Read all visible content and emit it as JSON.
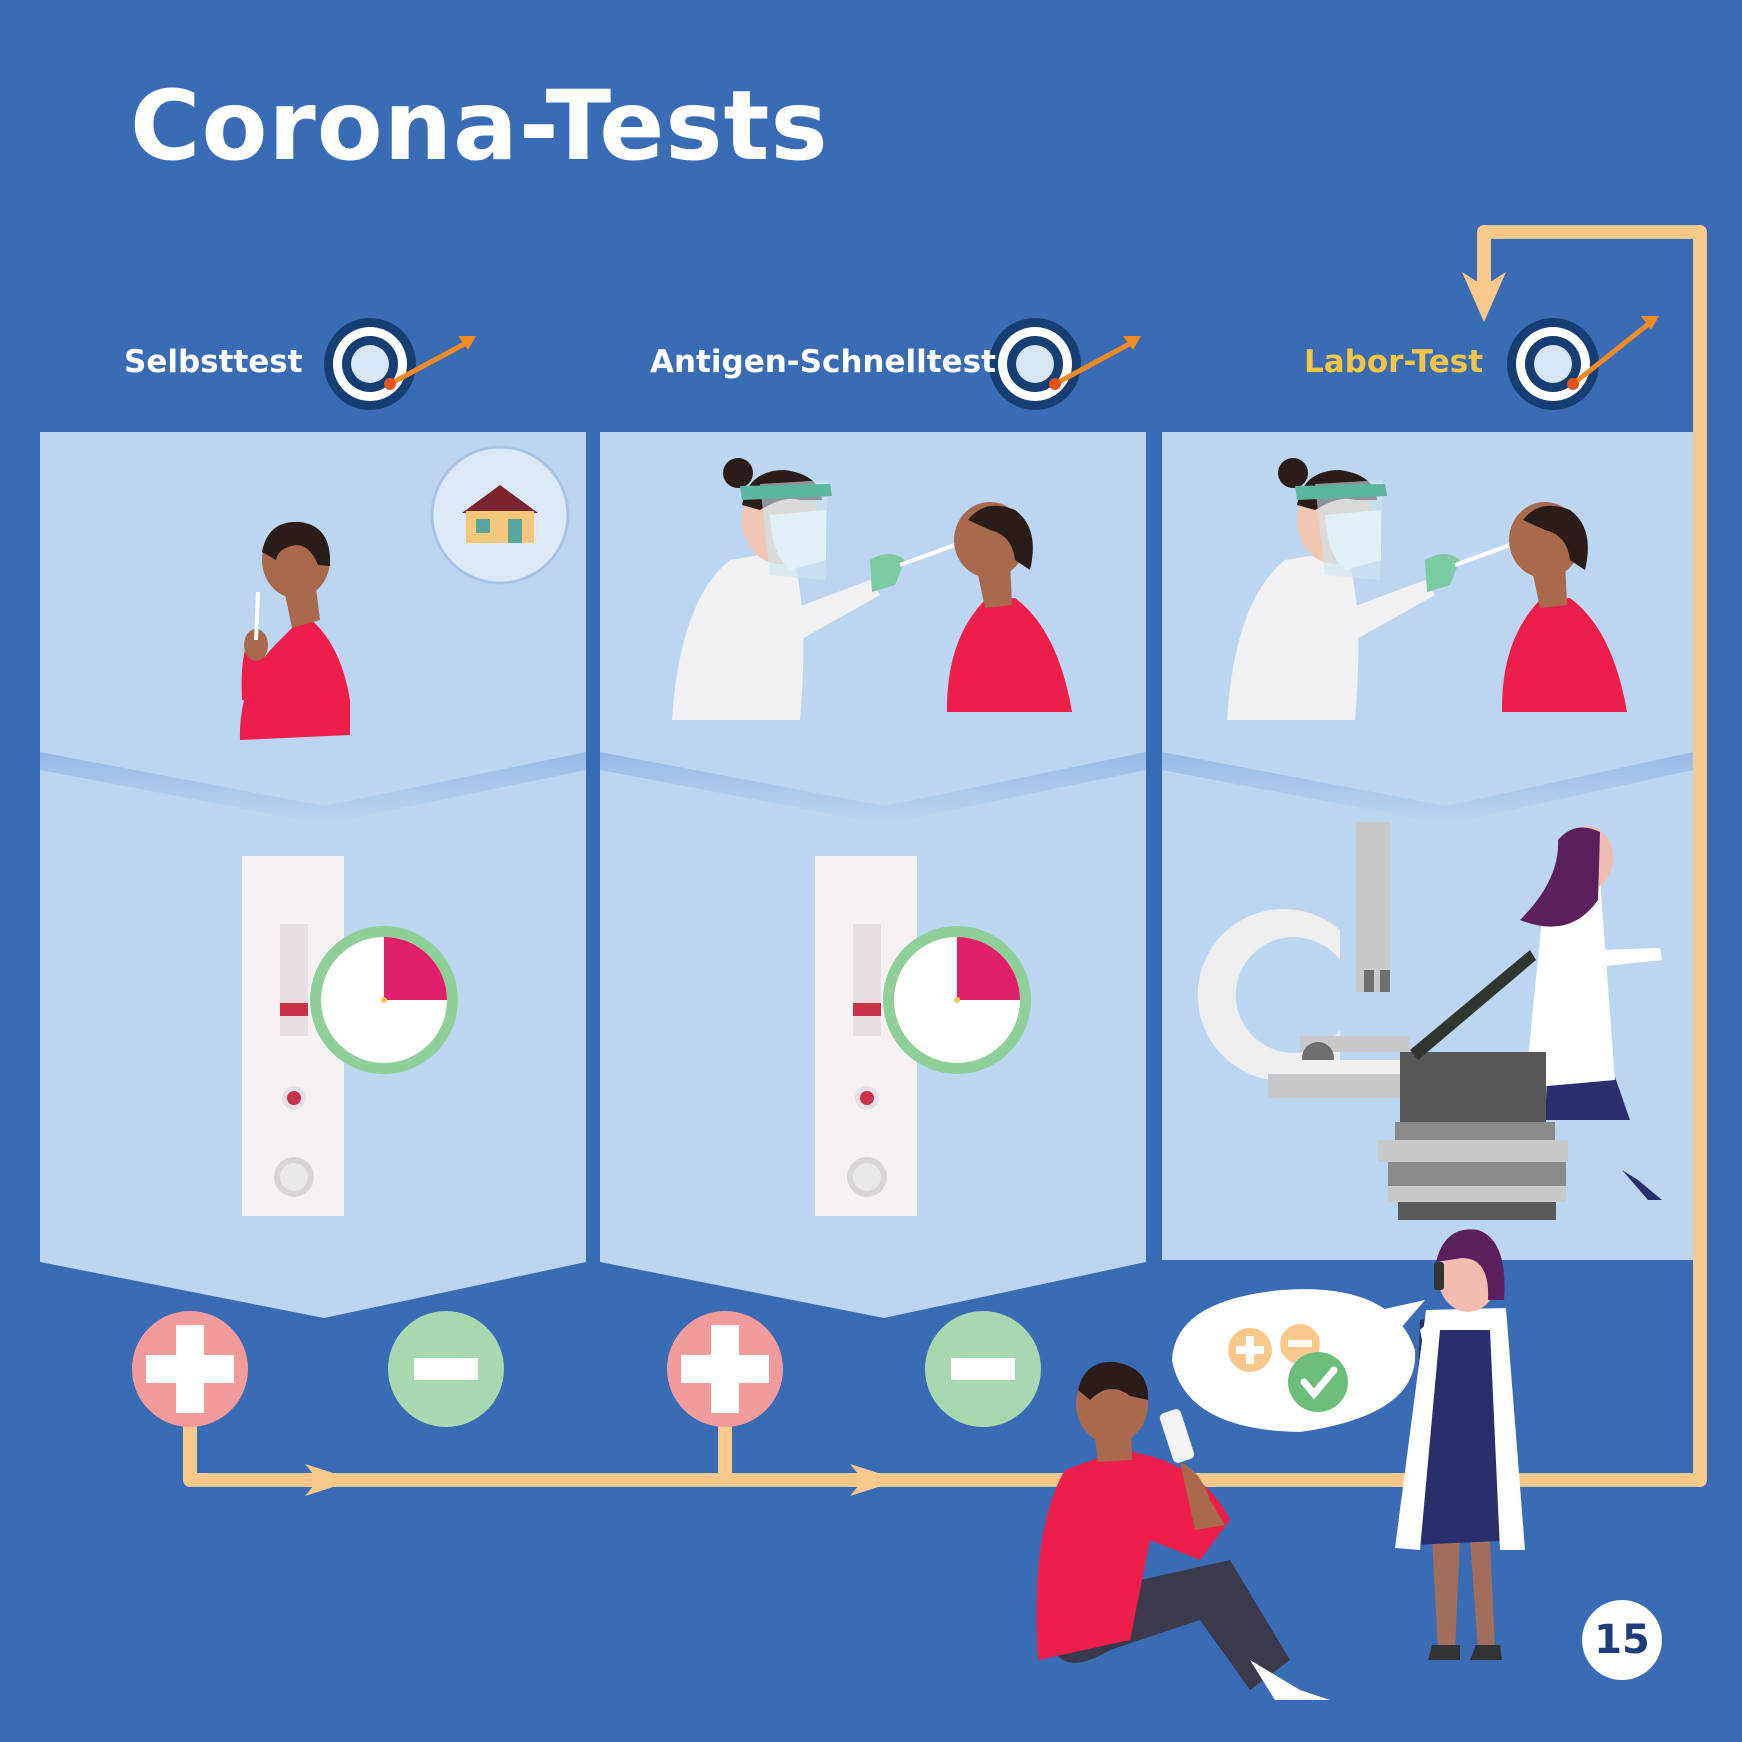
{
  "title": "Corona-Tests",
  "tests": [
    {
      "label": "Selbsttest",
      "color": "#ffffff"
    },
    {
      "label": "Antigen-Schnelltest",
      "color": "#ffffff"
    },
    {
      "label": "Labor-Test",
      "color": "#f4c542"
    }
  ],
  "results": {
    "positive_symbol": "+",
    "negative_symbol": "−"
  },
  "page_number": "15",
  "colors": {
    "background": "#3a6bb5",
    "panel": "#bcd6f1",
    "flow_line": "#f8c98b",
    "positive": "#f29b9b",
    "negative": "#a7d8b0",
    "clothing_red": "#ee1e4a",
    "timer_ring": "#8fcf98",
    "timer_segment": "#e0206a"
  },
  "icons": [
    "target-icon",
    "house-icon",
    "test-cassette-icon",
    "timer-icon",
    "microscope-icon",
    "pcr-machine-icon",
    "phone-icon",
    "speech-bubble-icon",
    "check-icon"
  ]
}
